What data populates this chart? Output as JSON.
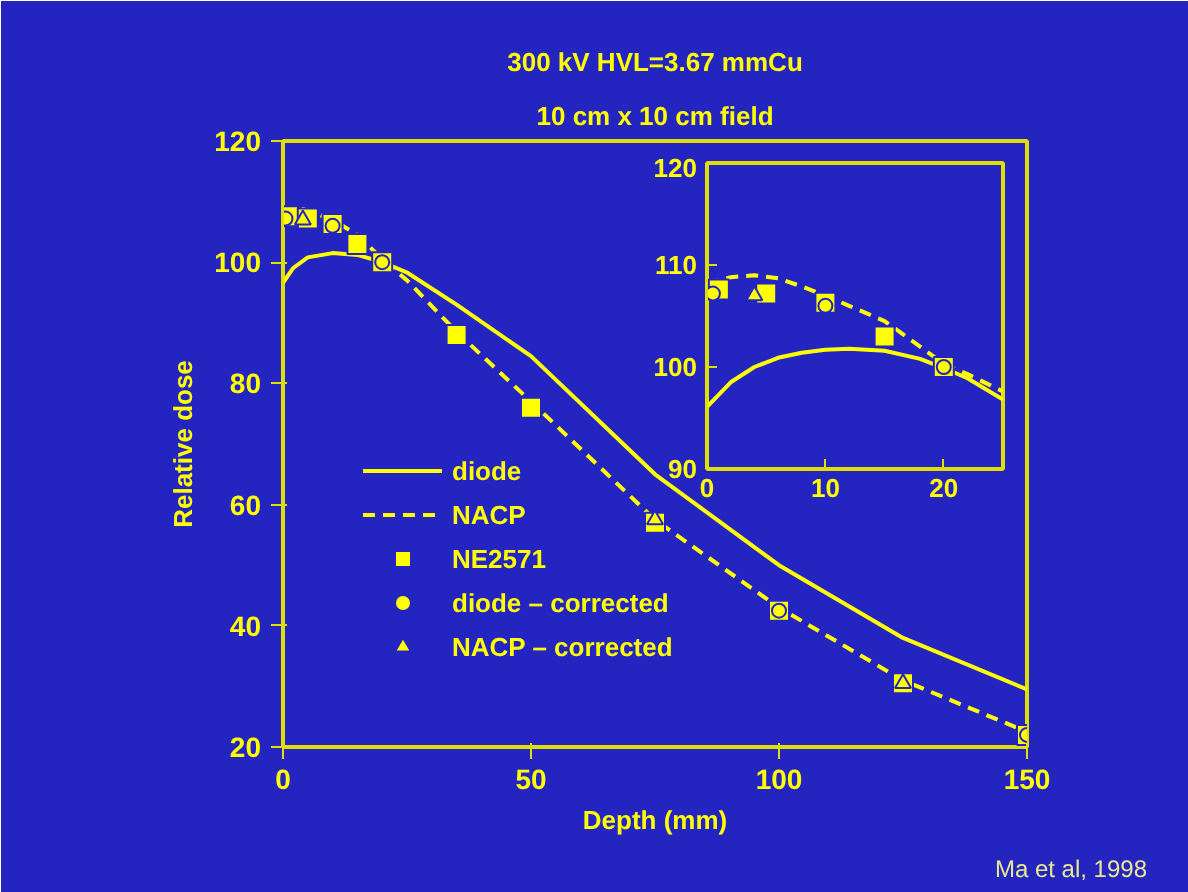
{
  "chart_data": [
    {
      "type": "line",
      "title": "300 kV HVL=3.67 mmCu",
      "subtitle": "10 cm x 10 cm field",
      "xlabel": "Depth (mm)",
      "ylabel": "Relative dose",
      "xlim": [
        0,
        150
      ],
      "xticks": [
        0,
        50,
        100,
        150
      ],
      "ylim": [
        20,
        120
      ],
      "yticks": [
        20,
        40,
        60,
        80,
        100,
        120
      ],
      "grid": false,
      "legend": "bottom left",
      "annotations": [
        "Ma et al, 1998"
      ],
      "series": [
        {
          "name": "diode",
          "line_style": "solid",
          "color": "#ffff00",
          "x": [
            0,
            2,
            5,
            10,
            15,
            20,
            25,
            35,
            50,
            75,
            100,
            125,
            150
          ],
          "values": [
            96.6,
            99,
            100.8,
            101.5,
            101.2,
            100,
            98.3,
            93,
            84.5,
            65,
            50,
            38,
            29.5
          ]
        },
        {
          "name": "NACP",
          "line_style": "dashed",
          "color": "#ffff00",
          "x": [
            0,
            2,
            4,
            10,
            15,
            20,
            25,
            35,
            50,
            75,
            100,
            125,
            150
          ],
          "values": [
            107.8,
            108.6,
            108.8,
            107,
            104.5,
            100.5,
            97,
            88.5,
            77,
            57.5,
            43,
            31,
            22.5
          ]
        },
        {
          "name": "NE2571",
          "type": "scatter",
          "marker": "square",
          "color": "#ffff00",
          "x": [
            1,
            5,
            10,
            15,
            20,
            35,
            50,
            75,
            100,
            125,
            150
          ],
          "values": [
            107.6,
            107.2,
            106.3,
            103,
            100,
            88,
            76,
            57,
            42.5,
            30.5,
            22
          ]
        },
        {
          "name": "diode – corrected",
          "type": "scatter",
          "marker": "circle",
          "color": "#ffff00",
          "x": [
            0.5,
            10,
            20,
            100,
            150
          ],
          "values": [
            107.2,
            106,
            100,
            42.5,
            22
          ]
        },
        {
          "name": "NACP – corrected",
          "type": "scatter",
          "marker": "triangle",
          "color": "#ffff00",
          "x": [
            4,
            75,
            125
          ],
          "values": [
            107,
            57.5,
            30.5
          ]
        }
      ]
    },
    {
      "type": "line",
      "xlim": [
        0,
        25
      ],
      "xticks": [
        0,
        10,
        20
      ],
      "ylim": [
        90,
        120
      ],
      "yticks": [
        90,
        100,
        110,
        120
      ],
      "grid": false,
      "series": [
        {
          "line_style": "solid",
          "color": "#ffff00",
          "x": [
            0,
            1,
            2,
            4,
            6,
            8,
            10,
            12,
            15,
            18,
            20,
            22,
            25
          ],
          "values": [
            96.1,
            97.3,
            98.5,
            100,
            100.9,
            101.4,
            101.7,
            101.8,
            101.6,
            100.8,
            99.9,
            98.9,
            96.8
          ]
        },
        {
          "line_style": "dashed",
          "color": "#ffff00",
          "x": [
            0,
            2,
            4,
            6,
            8,
            10,
            12,
            15,
            18,
            20,
            22,
            25
          ],
          "values": [
            108.2,
            108.8,
            109,
            108.7,
            107.9,
            107,
            106,
            104.5,
            102,
            100.3,
            99.3,
            97.6
          ]
        },
        {
          "type": "scatter",
          "marker": "square",
          "color": "#ffff00",
          "x": [
            1,
            5,
            10,
            15,
            20
          ],
          "values": [
            107.6,
            107.2,
            106.3,
            103,
            100
          ]
        },
        {
          "type": "scatter",
          "marker": "circle",
          "color": "#ffff00",
          "x": [
            0.5,
            10,
            20
          ],
          "values": [
            107.2,
            106,
            100
          ]
        },
        {
          "type": "scatter",
          "marker": "triangle",
          "color": "#ffff00",
          "x": [
            4
          ],
          "values": [
            107
          ]
        }
      ]
    }
  ]
}
